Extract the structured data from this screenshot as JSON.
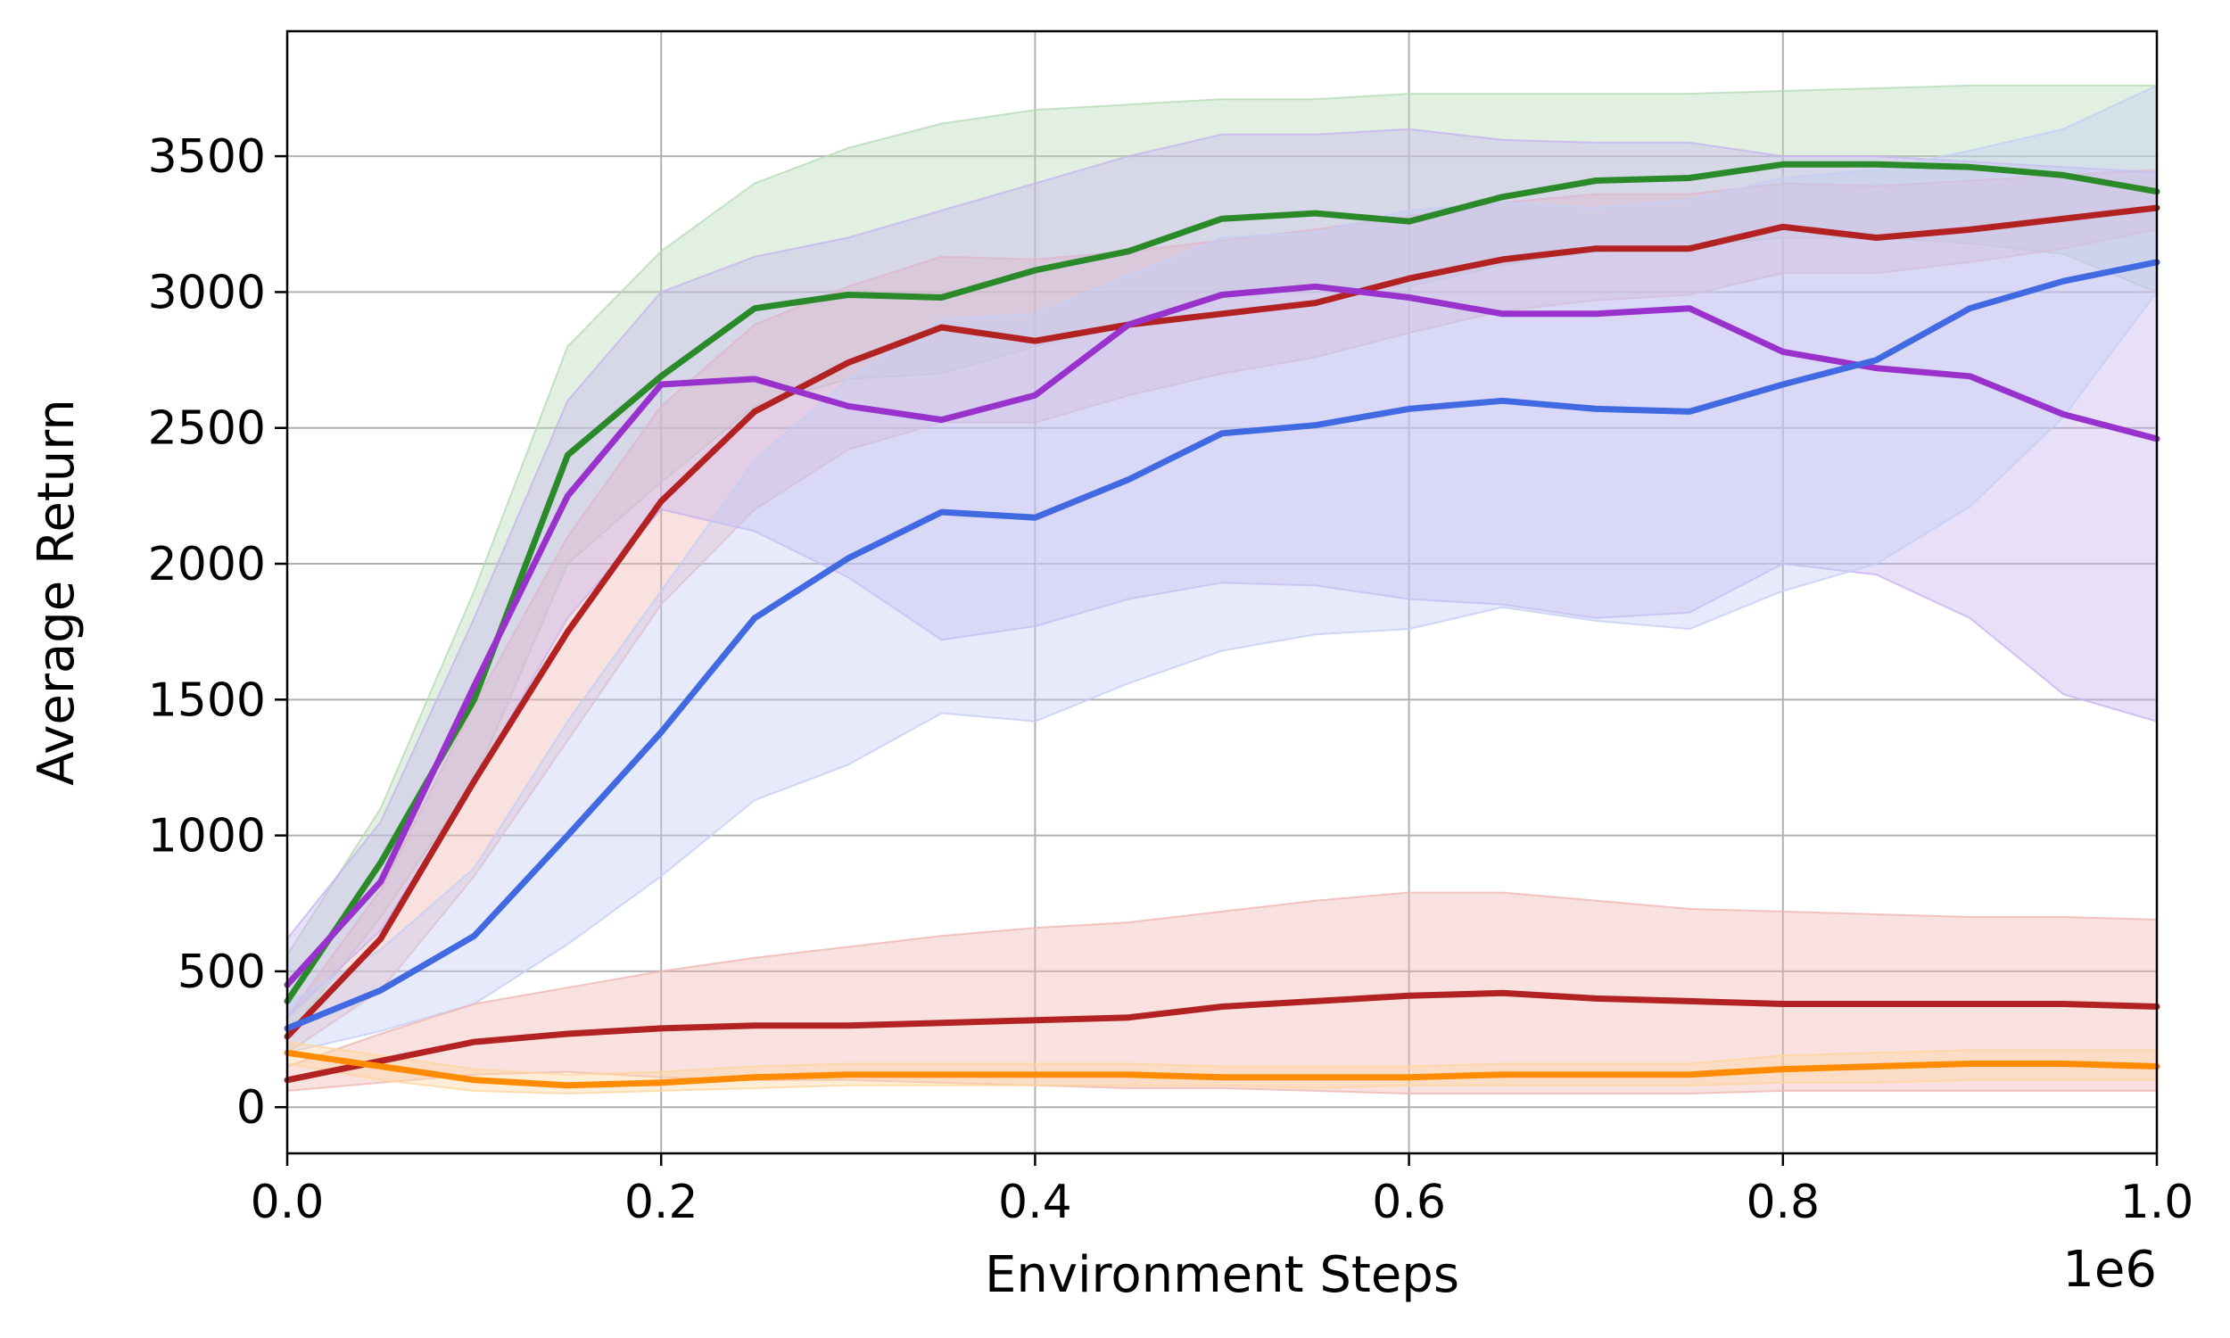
{
  "chart_data": {
    "type": "line",
    "title": "",
    "xlabel": "Environment Steps",
    "ylabel": "Average Return",
    "x_offset_label": "1e6",
    "xlim": [
      0.0,
      1.0
    ],
    "ylim": [
      -170,
      3960
    ],
    "grid": true,
    "legend": "none",
    "x_ticks": [
      {
        "value": 0.0,
        "label": "0.0"
      },
      {
        "value": 0.2,
        "label": "0.2"
      },
      {
        "value": 0.4,
        "label": "0.4"
      },
      {
        "value": 0.6,
        "label": "0.6"
      },
      {
        "value": 0.8,
        "label": "0.8"
      },
      {
        "value": 1.0,
        "label": "1.0"
      }
    ],
    "y_ticks": [
      {
        "value": 0,
        "label": "0"
      },
      {
        "value": 500,
        "label": "500"
      },
      {
        "value": 1000,
        "label": "1000"
      },
      {
        "value": 1500,
        "label": "1500"
      },
      {
        "value": 2000,
        "label": "2000"
      },
      {
        "value": 2500,
        "label": "2500"
      },
      {
        "value": 3000,
        "label": "3000"
      },
      {
        "value": 3500,
        "label": "3500"
      }
    ],
    "x": [
      0.0,
      0.05,
      0.1,
      0.15,
      0.2,
      0.25,
      0.3,
      0.35,
      0.4,
      0.45,
      0.5,
      0.55,
      0.6,
      0.65,
      0.7,
      0.75,
      0.8,
      0.85,
      0.9,
      0.95,
      1.0
    ],
    "series": [
      {
        "name": "green",
        "color": "#2a8a2a",
        "band_color": "#b7dbb7",
        "values": [
          390,
          900,
          1500,
          2400,
          2690,
          2940,
          2990,
          2980,
          3080,
          3150,
          3270,
          3290,
          3260,
          3350,
          3410,
          3420,
          3470,
          3470,
          3460,
          3430,
          3370
        ],
        "lower": [
          260,
          700,
          1200,
          2000,
          2300,
          2580,
          2680,
          2700,
          2800,
          2880,
          2980,
          3020,
          3020,
          3100,
          3150,
          3170,
          3200,
          3200,
          3180,
          3140,
          3000
        ],
        "upper": [
          560,
          1100,
          1900,
          2800,
          3150,
          3400,
          3530,
          3620,
          3670,
          3690,
          3710,
          3710,
          3730,
          3730,
          3730,
          3730,
          3740,
          3750,
          3760,
          3760,
          3760
        ]
      },
      {
        "name": "red",
        "color": "#b22222",
        "band_color": "#efb7b1",
        "values": [
          260,
          620,
          1200,
          1750,
          2230,
          2560,
          2740,
          2870,
          2820,
          2880,
          2920,
          2960,
          3050,
          3120,
          3160,
          3160,
          3240,
          3200,
          3230,
          3270,
          3310
        ],
        "lower": [
          200,
          430,
          850,
          1350,
          1850,
          2200,
          2420,
          2520,
          2520,
          2620,
          2700,
          2760,
          2850,
          2930,
          2970,
          2990,
          3070,
          3070,
          3110,
          3160,
          3230
        ],
        "upper": [
          330,
          800,
          1480,
          2100,
          2580,
          2880,
          3020,
          3130,
          3120,
          3150,
          3190,
          3230,
          3280,
          3330,
          3360,
          3360,
          3400,
          3390,
          3410,
          3430,
          3450
        ]
      },
      {
        "name": "purple",
        "color": "#9932cc",
        "band_color": "#c7b4f0",
        "values": [
          450,
          830,
          1550,
          2250,
          2660,
          2680,
          2580,
          2530,
          2620,
          2880,
          2990,
          3020,
          2980,
          2920,
          2920,
          2940,
          2780,
          2720,
          2690,
          2550,
          2460
        ],
        "lower": [
          330,
          650,
          1200,
          1800,
          2200,
          2120,
          1950,
          1720,
          1770,
          1870,
          1930,
          1920,
          1870,
          1850,
          1800,
          1820,
          2000,
          1960,
          1800,
          1520,
          1420
        ],
        "upper": [
          620,
          1050,
          1800,
          2600,
          3000,
          3130,
          3200,
          3300,
          3400,
          3500,
          3580,
          3580,
          3600,
          3560,
          3550,
          3550,
          3500,
          3500,
          3480,
          3460,
          3440
        ]
      },
      {
        "name": "blue",
        "color": "#4169e1",
        "band_color": "#c4cef5",
        "values": [
          290,
          430,
          630,
          1000,
          1380,
          1800,
          2020,
          2190,
          2170,
          2310,
          2480,
          2510,
          2570,
          2600,
          2570,
          2560,
          2660,
          2750,
          2940,
          3040,
          3110
        ],
        "lower": [
          200,
          280,
          380,
          600,
          850,
          1130,
          1260,
          1450,
          1420,
          1560,
          1680,
          1740,
          1760,
          1840,
          1790,
          1760,
          1900,
          2000,
          2210,
          2540,
          3000
        ],
        "upper": [
          380,
          580,
          880,
          1420,
          1900,
          2380,
          2680,
          2900,
          2920,
          3060,
          3200,
          3220,
          3300,
          3330,
          3310,
          3340,
          3420,
          3450,
          3520,
          3600,
          3760
        ]
      },
      {
        "name": "dark-red",
        "color": "#b22222",
        "band_color": "#efb7b1",
        "values": [
          100,
          170,
          240,
          270,
          290,
          300,
          300,
          310,
          320,
          330,
          370,
          390,
          410,
          420,
          400,
          390,
          380,
          380,
          380,
          380,
          370
        ],
        "lower": [
          60,
          90,
          120,
          130,
          110,
          100,
          100,
          90,
          80,
          70,
          70,
          60,
          50,
          50,
          50,
          50,
          60,
          60,
          60,
          60,
          60
        ],
        "upper": [
          150,
          270,
          380,
          440,
          500,
          550,
          590,
          630,
          660,
          680,
          720,
          760,
          790,
          790,
          760,
          730,
          720,
          710,
          700,
          700,
          690
        ]
      },
      {
        "name": "orange",
        "color": "#ff8c00",
        "band_color": "#ffd6a0",
        "values": [
          200,
          150,
          100,
          80,
          90,
          110,
          120,
          120,
          120,
          120,
          110,
          110,
          110,
          120,
          120,
          120,
          140,
          150,
          160,
          160,
          150
        ],
        "lower": [
          160,
          100,
          60,
          50,
          60,
          70,
          80,
          80,
          80,
          80,
          80,
          70,
          80,
          80,
          80,
          80,
          90,
          90,
          100,
          100,
          100
        ],
        "upper": [
          240,
          190,
          140,
          120,
          130,
          150,
          160,
          160,
          160,
          160,
          150,
          150,
          150,
          160,
          160,
          160,
          190,
          200,
          210,
          210,
          210
        ]
      }
    ]
  }
}
